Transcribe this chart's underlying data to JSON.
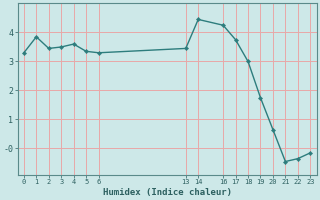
{
  "xlabel": "Humidex (Indice chaleur)",
  "background_color": "#cde8e8",
  "plot_bg_color": "#cde8e8",
  "grid_color": "#e8a8a8",
  "line_color": "#2d7d7d",
  "marker_color": "#2d7d7d",
  "x": [
    0,
    1,
    2,
    3,
    4,
    5,
    6,
    13,
    14,
    16,
    17,
    18,
    19,
    20,
    21,
    22,
    23
  ],
  "y": [
    3.3,
    3.85,
    3.45,
    3.5,
    3.6,
    3.35,
    3.3,
    3.45,
    4.45,
    4.25,
    3.75,
    3.0,
    1.75,
    0.65,
    -0.45,
    -0.35,
    -0.15
  ],
  "xlim": [
    -0.5,
    23.5
  ],
  "ylim": [
    -0.9,
    5.0
  ],
  "xtick_positions": [
    0,
    1,
    2,
    3,
    4,
    5,
    6,
    13,
    14,
    16,
    17,
    18,
    19,
    20,
    21,
    22,
    23
  ],
  "ytick_positions": [
    0,
    1,
    2,
    3,
    4
  ],
  "ytick_labels": [
    "-0",
    "1",
    "2",
    "3",
    "4"
  ],
  "figsize": [
    3.2,
    2.0
  ],
  "dpi": 100
}
